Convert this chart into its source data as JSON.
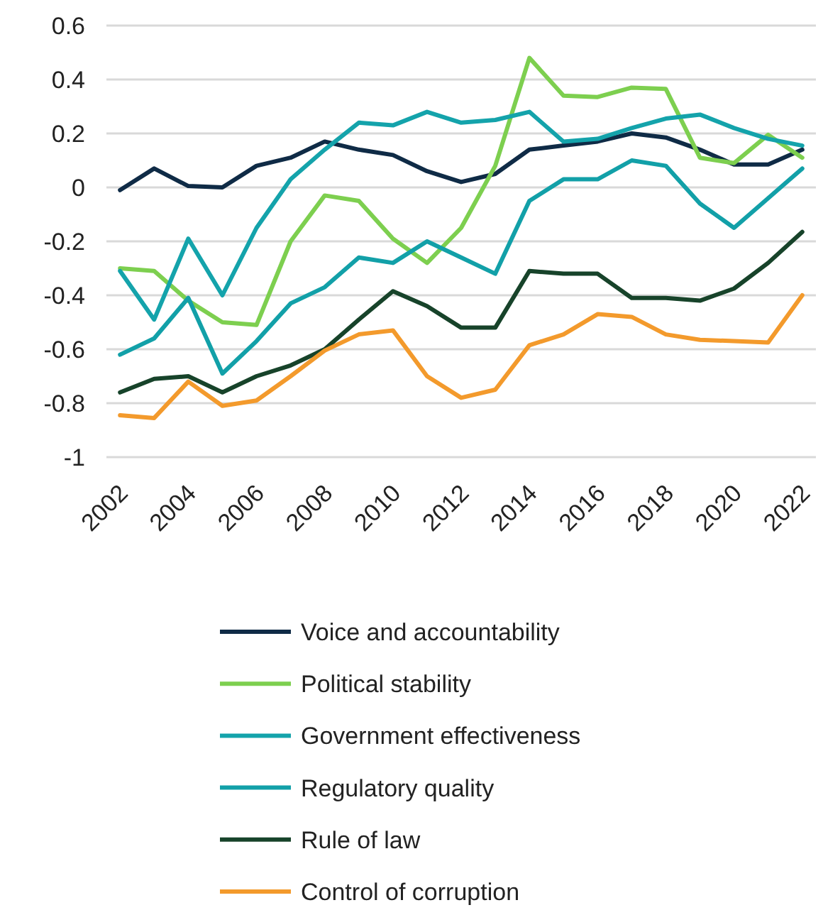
{
  "chart_data": {
    "type": "line",
    "x": [
      2002,
      2003,
      2004,
      2005,
      2006,
      2007,
      2008,
      2009,
      2010,
      2011,
      2012,
      2013,
      2014,
      2015,
      2016,
      2017,
      2018,
      2019,
      2020,
      2021,
      2022
    ],
    "xlim": [
      2001.6,
      2022.4
    ],
    "xticks": [
      2002,
      2004,
      2006,
      2008,
      2010,
      2012,
      2014,
      2016,
      2018,
      2020,
      2022
    ],
    "ylim": [
      -1,
      0.6
    ],
    "yticks": [
      -1,
      -0.8,
      -0.6,
      -0.4,
      -0.2,
      0,
      0.2,
      0.4,
      0.6
    ],
    "grid": "y",
    "legend": "bottom",
    "marker": "none",
    "line_style": "solid",
    "series": [
      {
        "name": "Voice and accountability",
        "color": "#0f2b46",
        "values": [
          -0.01,
          0.07,
          0.005,
          0.0,
          0.08,
          0.11,
          0.17,
          0.14,
          0.12,
          0.06,
          0.02,
          0.05,
          0.14,
          0.155,
          0.17,
          0.2,
          0.185,
          0.14,
          0.085,
          0.085,
          0.14
        ]
      },
      {
        "name": "Political stability",
        "color": "#7dcf4f",
        "values": [
          -0.3,
          -0.31,
          -0.42,
          -0.5,
          -0.51,
          -0.2,
          -0.03,
          -0.05,
          -0.19,
          -0.28,
          -0.15,
          0.08,
          0.48,
          0.34,
          0.335,
          0.37,
          0.365,
          0.11,
          0.09,
          0.195,
          0.11
        ]
      },
      {
        "name": "Government effectiveness",
        "color": "#14a3ab",
        "values": [
          -0.31,
          -0.49,
          -0.19,
          -0.4,
          -0.15,
          0.03,
          0.14,
          0.24,
          0.23,
          0.28,
          0.24,
          0.25,
          0.28,
          0.17,
          0.18,
          0.22,
          0.255,
          0.27,
          0.22,
          0.18,
          0.155
        ]
      },
      {
        "name": "Regulatory quality",
        "color": "#12a0a8",
        "values": [
          -0.62,
          -0.56,
          -0.41,
          -0.69,
          -0.57,
          -0.43,
          -0.37,
          -0.26,
          -0.28,
          -0.2,
          -0.26,
          -0.32,
          -0.05,
          0.03,
          0.03,
          0.1,
          0.08,
          -0.06,
          -0.15,
          -0.04,
          0.07
        ]
      },
      {
        "name": "Rule of law",
        "color": "#17432a",
        "values": [
          -0.76,
          -0.71,
          -0.7,
          -0.76,
          -0.7,
          -0.66,
          -0.6,
          -0.49,
          -0.385,
          -0.44,
          -0.52,
          -0.52,
          -0.31,
          -0.32,
          -0.32,
          -0.41,
          -0.41,
          -0.42,
          -0.375,
          -0.28,
          -0.165
        ]
      },
      {
        "name": "Control of corruption",
        "color": "#f39a2c",
        "values": [
          -0.845,
          -0.855,
          -0.72,
          -0.81,
          -0.79,
          -0.7,
          -0.605,
          -0.545,
          -0.53,
          -0.7,
          -0.78,
          -0.75,
          -0.585,
          -0.545,
          -0.47,
          -0.48,
          -0.545,
          -0.565,
          -0.57,
          -0.575,
          -0.4
        ]
      }
    ]
  }
}
